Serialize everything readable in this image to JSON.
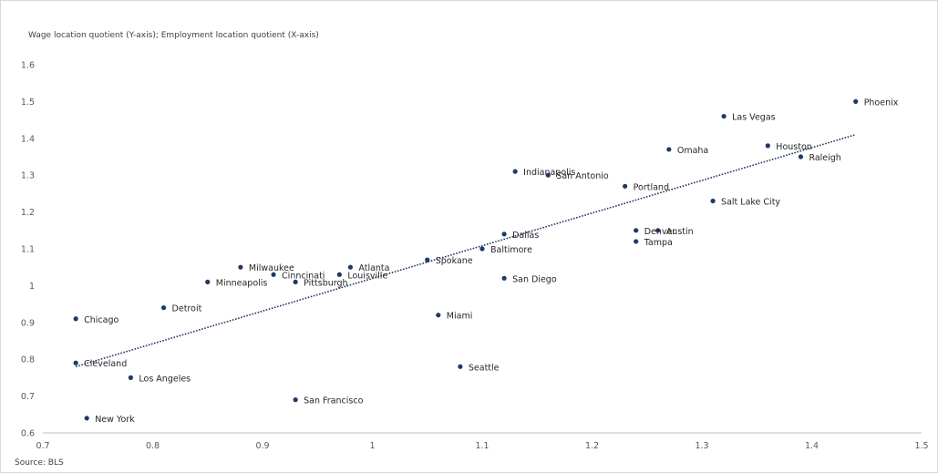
{
  "chart_data": {
    "type": "scatter",
    "title": "Wage location quotient (Y-axis); Employment location quotient (X-axis)",
    "source": "Source: BLS",
    "xlim": [
      0.7,
      1.5
    ],
    "ylim": [
      0.6,
      1.6
    ],
    "xticks": [
      0.7,
      0.8,
      0.9,
      1.0,
      1.1,
      1.2,
      1.3,
      1.4,
      1.5
    ],
    "xtick_labels": [
      "0.7",
      "0.8",
      "0.9",
      "1",
      "1.1",
      "1.2",
      "1.3",
      "1.4",
      "1.5"
    ],
    "yticks": [
      0.6,
      0.7,
      0.8,
      0.9,
      1.0,
      1.1,
      1.2,
      1.3,
      1.4,
      1.5,
      1.6
    ],
    "ytick_labels": [
      "0.6",
      "0.7",
      "0.8",
      "0.9",
      "1",
      "1.1",
      "1.2",
      "1.3",
      "1.4",
      "1.5",
      "1.6"
    ],
    "grid": false,
    "marker_color": "#1f3864",
    "trendline": {
      "style": "dotted",
      "color": "#1f3864",
      "x": [
        0.73,
        1.44
      ],
      "y": [
        0.78,
        1.41
      ]
    },
    "points": [
      {
        "label": "Phoenix",
        "x": 1.44,
        "y": 1.5
      },
      {
        "label": "Las Vegas",
        "x": 1.32,
        "y": 1.46
      },
      {
        "label": "Houston",
        "x": 1.36,
        "y": 1.38
      },
      {
        "label": "Raleigh",
        "x": 1.39,
        "y": 1.35
      },
      {
        "label": "Omaha",
        "x": 1.27,
        "y": 1.37
      },
      {
        "label": "Indianapolis",
        "x": 1.13,
        "y": 1.31
      },
      {
        "label": "San Antonio",
        "x": 1.16,
        "y": 1.3
      },
      {
        "label": "Portland",
        "x": 1.23,
        "y": 1.27
      },
      {
        "label": "Salt Lake City",
        "x": 1.31,
        "y": 1.23
      },
      {
        "label": "Denver",
        "x": 1.24,
        "y": 1.15
      },
      {
        "label": "Austin",
        "x": 1.26,
        "y": 1.15
      },
      {
        "label": "Tampa",
        "x": 1.24,
        "y": 1.12
      },
      {
        "label": "Dallas",
        "x": 1.12,
        "y": 1.14
      },
      {
        "label": "Baltimore",
        "x": 1.1,
        "y": 1.1
      },
      {
        "label": "Spokane",
        "x": 1.05,
        "y": 1.07
      },
      {
        "label": "San Diego",
        "x": 1.12,
        "y": 1.02
      },
      {
        "label": "Atlanta",
        "x": 0.98,
        "y": 1.05
      },
      {
        "label": "Louisville",
        "x": 0.97,
        "y": 1.03
      },
      {
        "label": "Milwaukee",
        "x": 0.88,
        "y": 1.05
      },
      {
        "label": "Cinncinati",
        "x": 0.91,
        "y": 1.03
      },
      {
        "label": "Pittsburgh",
        "x": 0.93,
        "y": 1.01
      },
      {
        "label": "Minneapolis",
        "x": 0.85,
        "y": 1.01
      },
      {
        "label": "Detroit",
        "x": 0.81,
        "y": 0.94
      },
      {
        "label": "Chicago",
        "x": 0.73,
        "y": 0.91
      },
      {
        "label": "Miami",
        "x": 1.06,
        "y": 0.92
      },
      {
        "label": "Cleveland",
        "x": 0.73,
        "y": 0.79
      },
      {
        "label": "Seattle",
        "x": 1.08,
        "y": 0.78
      },
      {
        "label": "Los Angeles",
        "x": 0.78,
        "y": 0.75
      },
      {
        "label": "San Francisco",
        "x": 0.93,
        "y": 0.69
      },
      {
        "label": "New York",
        "x": 0.74,
        "y": 0.64
      }
    ]
  }
}
